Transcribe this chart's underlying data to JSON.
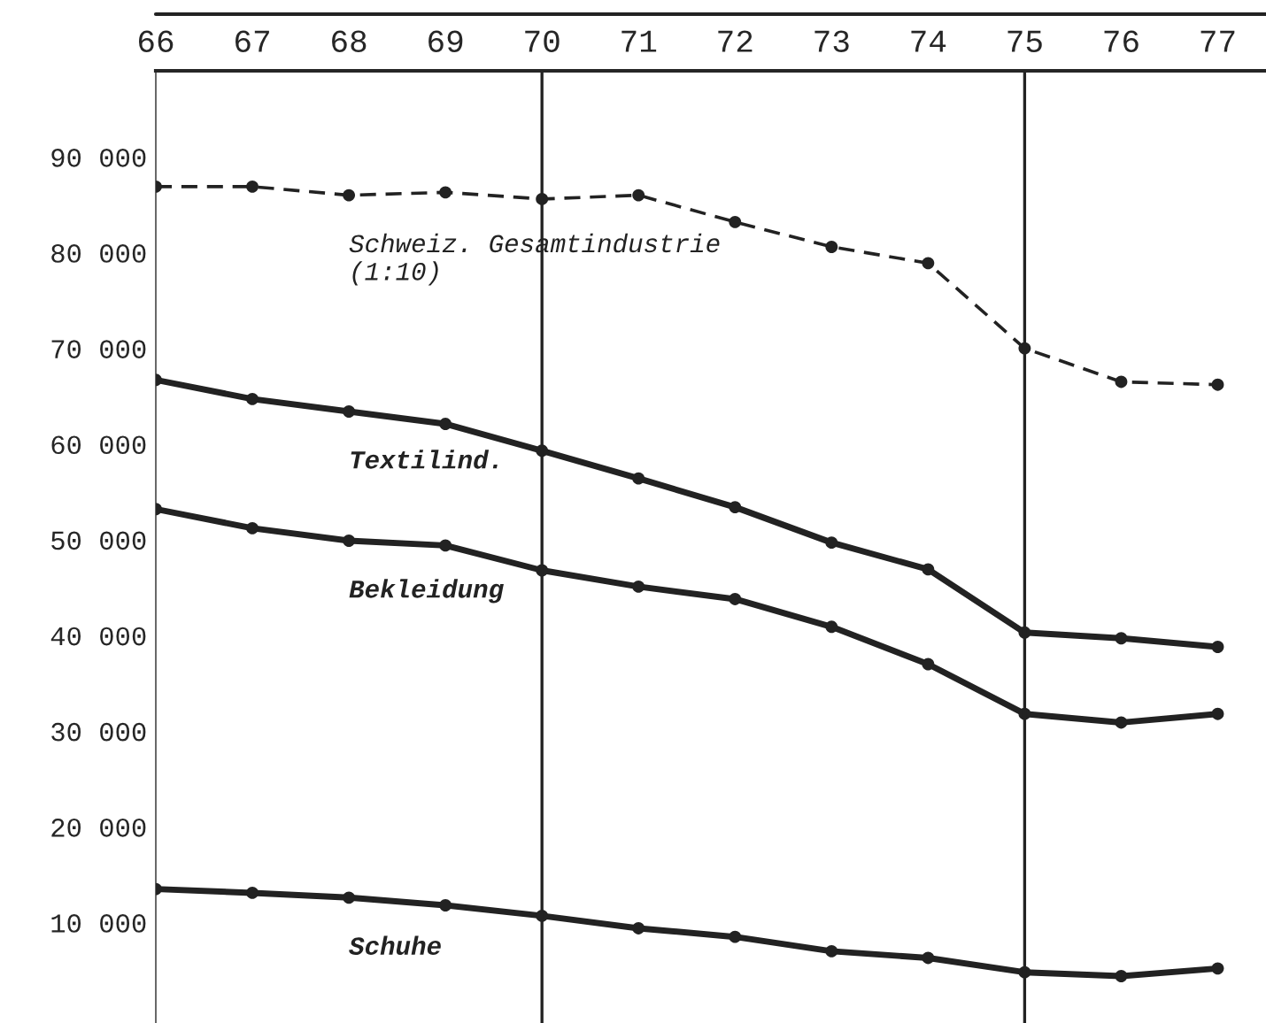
{
  "chart_data": {
    "type": "line",
    "x": [
      66,
      67,
      68,
      69,
      70,
      71,
      72,
      73,
      74,
      75,
      76,
      77
    ],
    "series": [
      {
        "name": "Schweiz. Gesamtindustrie\n(1:10)",
        "color": "#222222",
        "line_style": "dashed",
        "values": [
          86900,
          86900,
          86000,
          86300,
          85600,
          86000,
          83200,
          80600,
          78900,
          70000,
          66500,
          66200
        ]
      },
      {
        "name": "Textilind.",
        "color": "#222222",
        "line_style": "solid",
        "values": [
          66700,
          64700,
          63400,
          62100,
          59300,
          56400,
          53400,
          49700,
          46900,
          40300,
          39700,
          38800
        ]
      },
      {
        "name": "Bekleidung",
        "color": "#222222",
        "line_style": "solid",
        "values": [
          53200,
          51200,
          49900,
          49400,
          46800,
          45100,
          43800,
          40900,
          37000,
          31800,
          30900,
          31800
        ]
      },
      {
        "name": "Schuhe",
        "color": "#222222",
        "line_style": "solid",
        "values": [
          13500,
          13100,
          12600,
          11800,
          10700,
          9400,
          8500,
          7000,
          6300,
          4800,
          4400,
          5200
        ]
      }
    ],
    "xlim": [
      66,
      77.5
    ],
    "xticks": [
      66,
      67,
      68,
      69,
      70,
      71,
      72,
      73,
      74,
      75,
      76,
      77
    ],
    "ylim": [
      -500,
      99000
    ],
    "yticks": [
      {
        "value": 10000,
        "label": "10 000"
      },
      {
        "value": 20000,
        "label": "20 000"
      },
      {
        "value": 30000,
        "label": "30 000"
      },
      {
        "value": 40000,
        "label": "40 000"
      },
      {
        "value": 50000,
        "label": "50 000"
      },
      {
        "value": 60000,
        "label": "60 000"
      },
      {
        "value": 70000,
        "label": "70 000"
      },
      {
        "value": 80000,
        "label": "80 000"
      },
      {
        "value": 90000,
        "label": "90 000"
      }
    ],
    "ref_lines": [
      {
        "axis": "x",
        "value": 70,
        "color": "#222222"
      },
      {
        "axis": "x",
        "value": 75,
        "color": "#222222"
      }
    ],
    "marker": "circle",
    "grid": false,
    "legend": false
  }
}
